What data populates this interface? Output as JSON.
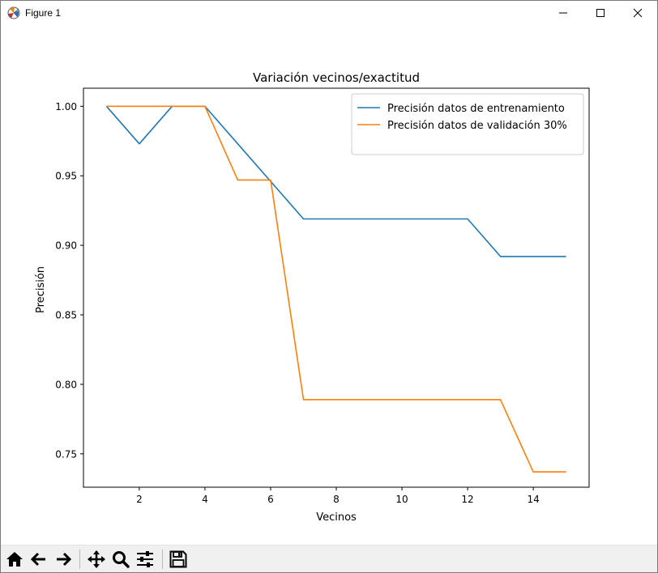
{
  "window": {
    "title": "Figure 1"
  },
  "chart_data": {
    "type": "line",
    "title": "Variación vecinos/exactitud",
    "xlabel": "Vecinos",
    "ylabel": "Precisión",
    "xlim": [
      0.3,
      15.7
    ],
    "ylim": [
      0.726,
      1.013
    ],
    "xticks": [
      2,
      4,
      6,
      8,
      10,
      12,
      14
    ],
    "yticks": [
      0.75,
      0.8,
      0.85,
      0.9,
      0.95,
      1.0
    ],
    "xtick_labels": [
      "2",
      "4",
      "6",
      "8",
      "10",
      "12",
      "14"
    ],
    "ytick_labels": [
      "0.75",
      "0.80",
      "0.85",
      "0.90",
      "0.95",
      "1.00"
    ],
    "grid": false,
    "legend_position": "upper right",
    "x": [
      1,
      2,
      3,
      4,
      5,
      6,
      7,
      8,
      9,
      10,
      11,
      12,
      13,
      14,
      15
    ],
    "series": [
      {
        "name": "Precisión datos de entrenamiento",
        "color": "#1f77b4",
        "values": [
          1.0,
          0.973,
          1.0,
          1.0,
          0.973,
          0.946,
          0.919,
          0.919,
          0.919,
          0.919,
          0.919,
          0.919,
          0.892,
          0.892,
          0.892
        ]
      },
      {
        "name": "Precisión datos de validación 30%",
        "color": "#ff7f0e",
        "values": [
          1.0,
          1.0,
          1.0,
          1.0,
          0.947,
          0.947,
          0.789,
          0.789,
          0.789,
          0.789,
          0.789,
          0.789,
          0.789,
          0.737,
          0.737
        ]
      }
    ]
  },
  "toolbar": {
    "items": [
      {
        "name": "home-button",
        "icon": "home-icon"
      },
      {
        "name": "back-button",
        "icon": "arrow-left-icon"
      },
      {
        "name": "forward-button",
        "icon": "arrow-right-icon"
      },
      {
        "name": "pan-button",
        "icon": "move-icon"
      },
      {
        "name": "zoom-button",
        "icon": "magnifier-icon"
      },
      {
        "name": "configure-subplots-button",
        "icon": "sliders-icon"
      },
      {
        "name": "save-button",
        "icon": "floppy-disk-icon"
      }
    ]
  }
}
